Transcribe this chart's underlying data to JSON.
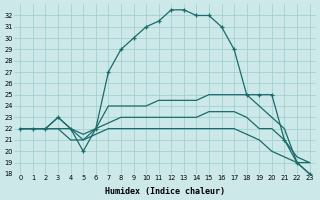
{
  "xlabel": "Humidex (Indice chaleur)",
  "x": [
    0,
    1,
    2,
    3,
    4,
    5,
    6,
    7,
    8,
    9,
    10,
    11,
    12,
    13,
    14,
    15,
    16,
    17,
    18,
    19,
    20,
    21,
    22,
    23
  ],
  "line_main": [
    22,
    22,
    22,
    23,
    22,
    20,
    22,
    27,
    29,
    30,
    31,
    31.5,
    32.5,
    32.5,
    32,
    32,
    31,
    29,
    25,
    25,
    25,
    21,
    19,
    18
  ],
  "line2": [
    22,
    22,
    22,
    23,
    22,
    21,
    22,
    24,
    24,
    24,
    24,
    24.5,
    24.5,
    24.5,
    24.5,
    25,
    25,
    25,
    25,
    24,
    23,
    22,
    19,
    19
  ],
  "line3": [
    22,
    22,
    22,
    22,
    22,
    21.5,
    22,
    22.5,
    23,
    23,
    23,
    23,
    23,
    23,
    23,
    23.5,
    23.5,
    23.5,
    23,
    22,
    22,
    21,
    19.5,
    19
  ],
  "line4": [
    22,
    22,
    22,
    22,
    21,
    21,
    21.5,
    22,
    22,
    22,
    22,
    22,
    22,
    22,
    22,
    22,
    22,
    22,
    21.5,
    21,
    20,
    19.5,
    19,
    18
  ],
  "ylim": [
    18,
    33
  ],
  "yticks": [
    18,
    19,
    20,
    21,
    22,
    23,
    24,
    25,
    26,
    27,
    28,
    29,
    30,
    31,
    32
  ],
  "bg_color": "#cce8e8",
  "line_color": "#1a6b6b",
  "grid_color": "#9dcece"
}
